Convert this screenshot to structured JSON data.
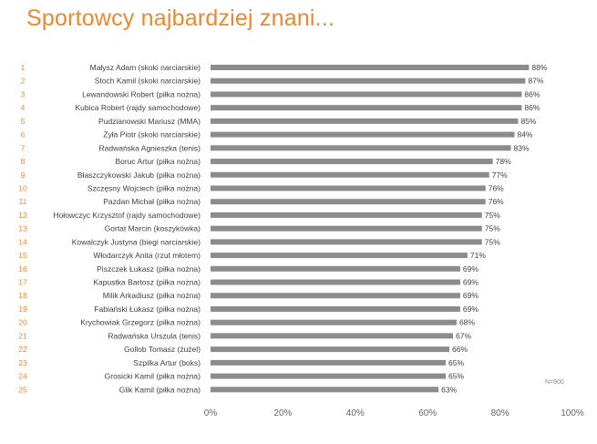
{
  "title": "Sportowcy najbardziej znani...",
  "note": "N=900",
  "colors": {
    "title": "#e8892f",
    "bar": "#8c8c8c",
    "rank": "#e8892f",
    "label": "#404040",
    "axis": "#666666"
  },
  "chart_data": {
    "type": "bar",
    "orientation": "horizontal",
    "title": "Sportowcy najbardziej znani...",
    "ranks": [
      "1",
      "2",
      "3",
      "4",
      "5",
      "6",
      "7",
      "8",
      "9",
      "10",
      "11",
      "12",
      "13",
      "14",
      "15",
      "16",
      "17",
      "18",
      "19",
      "20",
      "21",
      "22",
      "23",
      "24",
      "25"
    ],
    "categories": [
      "Małysz Adam (skoki narciarskie)",
      "Stoch Kamil (skoki narciarskie)",
      "Lewandowski Robert (piłka nożna)",
      "Kubica Robert (rajdy samochodowe)",
      "Pudzianowski Mariusz (MMA)",
      "Żyła Piotr (skoki narciarskie)",
      "Radwańska Agnieszka (tenis)",
      "Boruc Artur (piłka nożna)",
      "Błaszczykowski Jakub (piłka nożna)",
      "Szczęsny Wojciech (piłka nożna)",
      "Pazdan Michał (piłka nożna)",
      "Hołowczyc Krzysztof (rajdy samochodowe)",
      "Gortat Marcin (koszykówka)",
      "Kowalczyk Justyna (biegi narciarskie)",
      "Włodarczyk Anita (rzut młotem)",
      "Piszczek Łukasz (piłka nożna)",
      "Kapustka Bartosz (piłka nożna)",
      "Milik Arkadiusz (piłka nożna)",
      "Fabiański Łukasz (piłka nożna)",
      "Krychowiak Grzegorz (piłka nożna)",
      "Radwańska Urszula (tenis)",
      "Gollob Tomasz (żużel)",
      "Szpilka Artur (boks)",
      "Grosicki Kamil (piłka nożna)",
      "Glik Kamil (piłka nożna)"
    ],
    "values": [
      88,
      87,
      86,
      86,
      85,
      84,
      83,
      78,
      77,
      76,
      76,
      75,
      75,
      75,
      71,
      69,
      69,
      69,
      69,
      68,
      67,
      66,
      65,
      65,
      63
    ],
    "value_labels": [
      "88%",
      "87%",
      "86%",
      "86%",
      "85%",
      "84%",
      "83%",
      "78%",
      "77%",
      "76%",
      "76%",
      "75%",
      "75%",
      "75%",
      "71%",
      "69%",
      "69%",
      "69%",
      "69%",
      "68%",
      "67%",
      "66%",
      "65%",
      "65%",
      "63%"
    ],
    "xlim": [
      0,
      100
    ],
    "xticks": [
      0,
      20,
      40,
      60,
      80,
      100
    ],
    "xtick_labels": [
      "0%",
      "20%",
      "40%",
      "60%",
      "80%",
      "100%"
    ],
    "grid": false,
    "legend": "none"
  }
}
